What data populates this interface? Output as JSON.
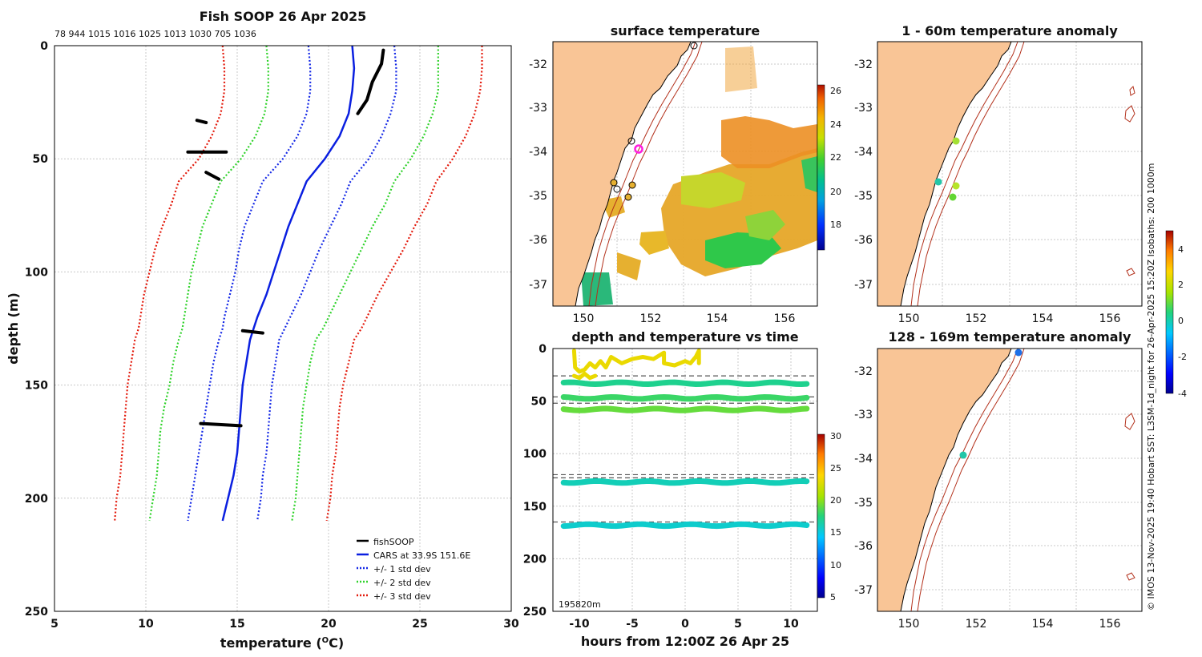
{
  "colors": {
    "land": "#F9C596",
    "grid": "#c8c8c8",
    "black": "#000000",
    "cars": "#0a1fe0",
    "std1": "#1428e6",
    "std2": "#2fd22a",
    "std3": "#e31a0c",
    "isobath": "#b3311c"
  },
  "profile_panel": {
    "title": "Fish SOOP 26 Apr 2025",
    "counts_label": "78 944 1015 1016 1025 1013 1030 705 1036",
    "xlabel": "temperature (",
    "xlabel_unit": "O",
    "xlabel_tail": "C)",
    "ylabel": "depth (m)"
  },
  "surface_panel": {
    "title": "surface temperature",
    "colorbar_ticks": [
      "26",
      "24",
      "22",
      "20",
      "18"
    ]
  },
  "time_panel": {
    "title": "depth and temperature vs time",
    "xlabel": "hours from 12:00Z 26 Apr 25",
    "annotation": "195820m",
    "colorbar_ticks": [
      "30",
      "25",
      "20",
      "15",
      "10",
      "5"
    ]
  },
  "anom_top": {
    "title": "1 - 60m temperature anomaly"
  },
  "anom_bottom": {
    "title": "128 - 169m temperature anomaly"
  },
  "anom_colorbar_ticks": [
    "4",
    "2",
    "0",
    "-2",
    "-4"
  ],
  "side_caption": "© IMOS 13-Nov-2025 19:40 Hobart SST: L3SM-1d_night for 26-Apr-2025 15:20Z Isobaths: 200  1000m",
  "legend": [
    "fishSOOP",
    "CARS at 33.9S 151.6E",
    "+/- 1 std dev",
    "+/- 2 std dev",
    "+/- 3 std dev"
  ],
  "map_x_ticks": [
    "150",
    "152",
    "154",
    "156"
  ],
  "map_y_ticks": [
    "-32",
    "-33",
    "-34",
    "-35",
    "-36",
    "-37"
  ],
  "chart_data": [
    {
      "type": "line",
      "title": "Fish SOOP 26 Apr 2025",
      "xlabel": "temperature (°C)",
      "ylabel": "depth (m)",
      "xlim": [
        5,
        30
      ],
      "ylim": [
        250,
        0
      ],
      "x_ticks": [
        "5",
        "10",
        "15",
        "20",
        "25",
        "30"
      ],
      "y_ticks": [
        "0",
        "50",
        "100",
        "150",
        "200",
        "250"
      ],
      "depths": [
        0,
        10,
        20,
        30,
        40,
        50,
        60,
        70,
        80,
        90,
        100,
        110,
        120,
        125,
        130,
        140,
        150,
        160,
        170,
        180,
        190,
        200,
        210
      ],
      "series": [
        {
          "name": "CARS at 33.9S 151.6E",
          "values": [
            21.3,
            21.4,
            21.3,
            21.1,
            20.6,
            19.8,
            18.8,
            18.3,
            17.8,
            17.4,
            17.0,
            16.6,
            16.1,
            15.9,
            15.7,
            15.5,
            15.3,
            15.2,
            15.1,
            15.0,
            14.8,
            14.5,
            14.2
          ]
        },
        {
          "name": "+1 std dev",
          "values": [
            23.6,
            23.7,
            23.7,
            23.4,
            22.9,
            22.2,
            21.2,
            20.7,
            20.1,
            19.5,
            19.0,
            18.5,
            17.9,
            17.6,
            17.3,
            17.1,
            16.9,
            16.8,
            16.7,
            16.6,
            16.4,
            16.3,
            16.1
          ]
        },
        {
          "name": "-1 std dev",
          "values": [
            18.9,
            19.0,
            19.0,
            18.8,
            18.3,
            17.5,
            16.4,
            15.9,
            15.4,
            15.1,
            14.9,
            14.6,
            14.3,
            14.2,
            14.0,
            13.7,
            13.5,
            13.3,
            13.1,
            12.9,
            12.7,
            12.5,
            12.3
          ]
        },
        {
          "name": "+2 std dev",
          "values": [
            26.0,
            26.0,
            26.0,
            25.7,
            25.2,
            24.5,
            23.6,
            23.1,
            22.4,
            21.8,
            21.2,
            20.6,
            20.0,
            19.7,
            19.3,
            19.0,
            18.8,
            18.6,
            18.5,
            18.4,
            18.3,
            18.2,
            18.0
          ]
        },
        {
          "name": "-2 std dev",
          "values": [
            16.6,
            16.7,
            16.7,
            16.5,
            16.0,
            15.2,
            14.1,
            13.6,
            13.1,
            12.8,
            12.5,
            12.3,
            12.1,
            12.0,
            11.8,
            11.5,
            11.3,
            11.0,
            10.8,
            10.7,
            10.6,
            10.4,
            10.2
          ]
        },
        {
          "name": "+3 std dev",
          "values": [
            28.4,
            28.4,
            28.3,
            28.0,
            27.5,
            26.8,
            25.9,
            25.4,
            24.7,
            24.1,
            23.4,
            22.7,
            22.1,
            21.8,
            21.4,
            21.1,
            20.8,
            20.6,
            20.5,
            20.4,
            20.2,
            20.1,
            19.9
          ]
        },
        {
          "name": "-3 std dev",
          "values": [
            14.2,
            14.3,
            14.3,
            14.1,
            13.6,
            12.9,
            11.8,
            11.4,
            10.9,
            10.5,
            10.2,
            9.9,
            9.7,
            9.6,
            9.4,
            9.2,
            9.0,
            8.9,
            8.8,
            8.7,
            8.6,
            8.4,
            8.3
          ]
        }
      ],
      "fishsoop_segments": [
        {
          "depths": [
            2,
            8,
            16,
            24,
            30
          ],
          "temps": [
            23.0,
            22.9,
            22.4,
            22.1,
            21.6
          ]
        },
        {
          "depths": [
            33,
            34
          ],
          "temps": [
            12.8,
            13.3
          ]
        },
        {
          "depths": [
            47,
            47
          ],
          "temps": [
            12.3,
            14.4
          ]
        },
        {
          "depths": [
            56,
            59
          ],
          "temps": [
            13.3,
            14.0
          ]
        },
        {
          "depths": [
            126,
            127
          ],
          "temps": [
            15.3,
            16.4
          ]
        },
        {
          "depths": [
            167,
            168
          ],
          "temps": [
            13.0,
            15.2
          ]
        }
      ]
    },
    {
      "type": "scatter",
      "title": "depth and temperature vs time",
      "xlabel": "hours from 12:00Z 26 Apr 25",
      "xlim": [
        -12.5,
        12.5
      ],
      "ylim": [
        250,
        0
      ],
      "x_ticks": [
        "-10",
        "-5",
        "0",
        "5",
        "10"
      ],
      "y_ticks": [
        "0",
        "50",
        "100",
        "150",
        "200",
        "250"
      ],
      "tracks": [
        {
          "depth": 33,
          "temp": 17
        },
        {
          "depth": 47,
          "temp": 18
        },
        {
          "depth": 58,
          "temp": 19
        },
        {
          "depth": 127,
          "temp": 16
        },
        {
          "depth": 168,
          "temp": 15.5
        }
      ],
      "dashed_depths": [
        26,
        46,
        52,
        120,
        123,
        165
      ]
    }
  ]
}
